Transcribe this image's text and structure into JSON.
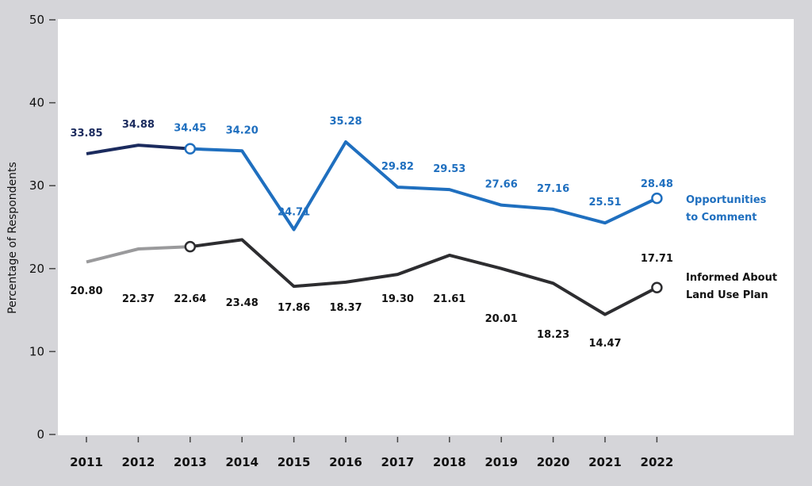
{
  "chart_data": {
    "type": "line",
    "title": "",
    "xlabel": "",
    "ylabel": "Percentage of Respondents",
    "ylim": [
      0,
      50
    ],
    "yticks": [
      "0",
      "10",
      "20",
      "30",
      "40",
      "50"
    ],
    "x": [
      "2011",
      "2012",
      "2013",
      "2014",
      "2015",
      "2016",
      "2017",
      "2018",
      "2019",
      "2020",
      "2021",
      "2022"
    ],
    "series": [
      {
        "name": "Opportunities to Comment",
        "name_lines": [
          "Opportunities",
          "to Comment"
        ],
        "color": "#1f6fbf",
        "early_color": "#1b2b5e",
        "values": [
          33.85,
          34.88,
          34.45,
          34.2,
          24.71,
          35.28,
          29.82,
          29.53,
          27.66,
          27.16,
          25.51,
          28.48
        ],
        "labels": [
          "33.85",
          "34.88",
          "34.45",
          "34.20",
          "24.71",
          "35.28",
          "29.82",
          "29.53",
          "27.66",
          "27.16",
          "25.51",
          "28.48"
        ]
      },
      {
        "name": "Informed About Land Use Plan",
        "name_lines": [
          "Informed About",
          "Land Use Plan"
        ],
        "color": "#2d2d30",
        "early_color": "#9a9a9c",
        "values": [
          20.8,
          22.37,
          22.64,
          23.48,
          17.86,
          18.37,
          19.3,
          21.61,
          20.01,
          18.23,
          14.47,
          17.71
        ],
        "labels": [
          "20.80",
          "22.37",
          "22.64",
          "23.48",
          "17.86",
          "18.37",
          "19.30",
          "21.61",
          "20.01",
          "18.23",
          "14.47",
          "17.71"
        ]
      }
    ],
    "grid": false,
    "legend": "right"
  }
}
